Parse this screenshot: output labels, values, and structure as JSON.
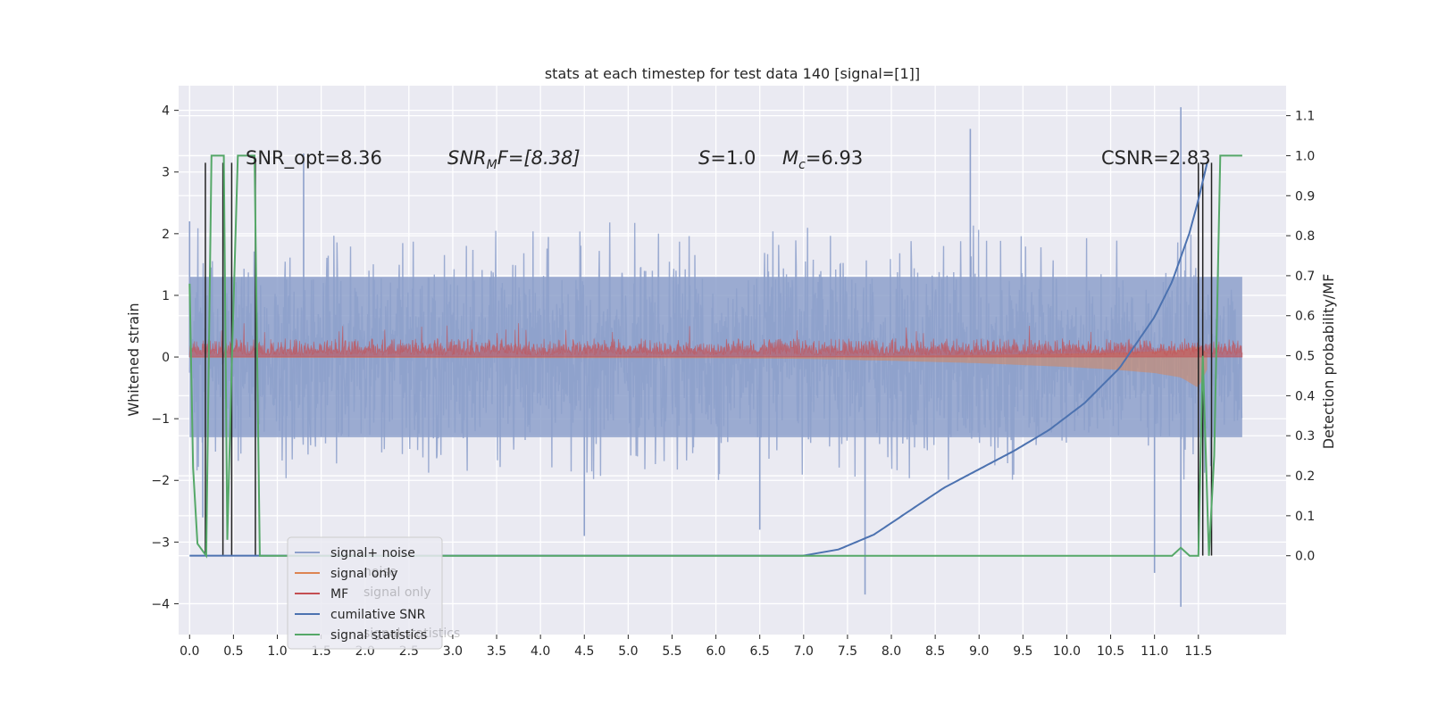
{
  "chart_data": {
    "type": "line",
    "title": "stats at each timestep for test data 140 [signal=[1]]",
    "xlabel": "",
    "ylabel": "Whitened strain",
    "y2label": "Detection probability/MF",
    "xlim": [
      -0.125,
      12.5
    ],
    "ylim": [
      -4.5,
      4.4
    ],
    "y2lim": [
      -0.197,
      1.175
    ],
    "xticks": [
      0.0,
      0.5,
      1.0,
      1.5,
      2.0,
      2.5,
      3.0,
      3.5,
      4.0,
      4.5,
      5.0,
      5.5,
      6.0,
      6.5,
      7.0,
      7.5,
      8.0,
      8.5,
      9.0,
      9.5,
      10.0,
      10.5,
      11.0,
      11.5
    ],
    "xtick_labels": [
      "0.0",
      "0.5",
      "1.0",
      "1.5",
      "2.0",
      "2.5",
      "3.0",
      "3.5",
      "4.0",
      "4.5",
      "5.0",
      "5.5",
      "6.0",
      "6.5",
      "7.0",
      "7.5",
      "8.0",
      "8.5",
      "9.0",
      "9.5",
      "10.0",
      "10.5",
      "11.0",
      "11.5"
    ],
    "yticks": [
      -4,
      -3,
      -2,
      -1,
      0,
      1,
      2,
      3,
      4
    ],
    "ytick_labels": [
      "−4",
      "−3",
      "−2",
      "−1",
      "0",
      "1",
      "2",
      "3",
      "4"
    ],
    "y2ticks": [
      0.0,
      0.1,
      0.2,
      0.3,
      0.4,
      0.5,
      0.6,
      0.7,
      0.8,
      0.9,
      1.0,
      1.1
    ],
    "y2tick_labels": [
      "0.0",
      "0.1",
      "0.2",
      "0.3",
      "0.4",
      "0.5",
      "0.6",
      "0.7",
      "0.8",
      "0.9",
      "1.0",
      "1.1"
    ],
    "grid": true,
    "legend_position": "lower-left",
    "annotations": {
      "snr_opt": "SNR_opt=8.36",
      "snr_mf_sym": "SNR",
      "snr_mf_sub": "M",
      "snr_mf_rest": "F=[8.38]",
      "s_sym": "S",
      "s_val": "=1.0",
      "mc_sym": "M",
      "mc_sub": "c",
      "mc_val": "=6.93",
      "csnr": "CSNR=2.83"
    },
    "legend": [
      {
        "label": "signal+ noise",
        "color": "#8da0cb"
      },
      {
        "label": "signal only",
        "color": "#dd8452"
      },
      {
        "label": "MF",
        "color": "#c44e52"
      },
      {
        "label": "cumilative SNR",
        "color": "#4c72b0"
      },
      {
        "label": "signal statistics",
        "color": "#55a868"
      }
    ],
    "legend_ghost": [
      "noise",
      "signal only",
      "signal statistics"
    ],
    "series": [
      {
        "name": "signal+ noise",
        "color": "#8da0cb",
        "axis": "left",
        "description_shape": "noise band",
        "typical_range": [
          -1.3,
          1.3
        ],
        "peak_envelope": [
          -2.0,
          2.2
        ],
        "spikes": [
          [
            0.0,
            2.2
          ],
          [
            0.15,
            -2.6
          ],
          [
            1.3,
            3.3
          ],
          [
            4.5,
            -2.9
          ],
          [
            6.5,
            -2.8
          ],
          [
            7.7,
            -3.85
          ],
          [
            8.9,
            3.7
          ],
          [
            11.0,
            -3.5
          ],
          [
            11.3,
            4.05
          ],
          [
            11.3,
            -4.05
          ]
        ]
      },
      {
        "name": "signal only",
        "color": "#dd8452",
        "axis": "left",
        "x": [
          0.0,
          6.0,
          7.0,
          8.0,
          9.0,
          10.0,
          10.5,
          11.0,
          11.3,
          11.5,
          11.6
        ],
        "envelope": [
          0.01,
          0.02,
          0.03,
          0.06,
          0.1,
          0.16,
          0.2,
          0.26,
          0.33,
          0.5,
          0.2
        ]
      },
      {
        "name": "MF",
        "color": "#c44e52",
        "axis": "left",
        "typical_range": [
          0.0,
          0.3
        ],
        "peak": 0.55
      },
      {
        "name": "cumilative SNR",
        "color": "#4c72b0",
        "axis": "left",
        "x": [
          0.0,
          7.0,
          7.4,
          7.8,
          8.2,
          8.6,
          9.0,
          9.4,
          9.8,
          10.2,
          10.6,
          11.0,
          11.2,
          11.4,
          11.5,
          11.6
        ],
        "y": [
          -3.22,
          -3.22,
          -3.12,
          -2.88,
          -2.5,
          -2.12,
          -1.82,
          -1.52,
          -1.18,
          -0.75,
          -0.18,
          0.65,
          1.22,
          2.02,
          2.55,
          3.15
        ]
      },
      {
        "name": "signal statistics",
        "color": "#55a868",
        "axis": "right",
        "x": [
          0.0,
          0.04,
          0.09,
          0.19,
          0.25,
          0.33,
          0.39,
          0.43,
          0.48,
          0.55,
          0.59,
          0.65,
          0.74,
          0.8,
          0.85,
          1.5,
          3.0,
          5.0,
          7.0,
          9.0,
          10.0,
          11.0,
          11.2,
          11.3,
          11.4,
          11.5,
          11.55,
          11.62,
          11.68,
          11.75,
          11.8,
          12.0
        ],
        "y": [
          0.68,
          0.22,
          0.03,
          0.0,
          1.0,
          1.0,
          1.0,
          0.04,
          0.47,
          1.0,
          1.0,
          1.0,
          1.0,
          0.0,
          0.0,
          0.0,
          0.0,
          0.0,
          0.0,
          0.0,
          0.0,
          0.0,
          0.0,
          0.02,
          0.0,
          0.0,
          0.5,
          0.0,
          0.25,
          1.0,
          1.0,
          1.0
        ]
      }
    ],
    "vertical_markers": {
      "color": "#222222",
      "x": [
        0.18,
        0.38,
        0.48,
        0.75,
        11.5,
        11.55,
        11.65
      ],
      "y_bottom": -3.22,
      "y_top": 3.15
    }
  }
}
